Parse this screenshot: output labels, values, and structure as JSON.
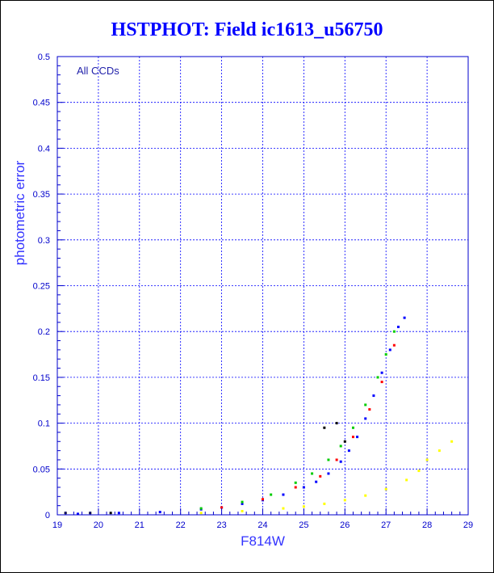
{
  "chart_data": {
    "type": "scatter",
    "title": "HSTPHOT: Field ic1613_u56750",
    "xlabel": "F814W",
    "ylabel": "photometric error",
    "annotation": "All CCDs",
    "xlim": [
      19,
      29
    ],
    "ylim": [
      0,
      0.5
    ],
    "xticks": [
      "19",
      "20",
      "21",
      "22",
      "23",
      "24",
      "25",
      "26",
      "27",
      "28",
      "29"
    ],
    "yticks": [
      "0",
      "0.05",
      "0.1",
      "0.15",
      "0.2",
      "0.25",
      "0.3",
      "0.35",
      "0.4",
      "0.45",
      "0.5"
    ],
    "grid": true,
    "colors": {
      "title": "#0000ff",
      "axis": "#0000cc",
      "grid": "#0000ff",
      "series_blue": "#0000ff",
      "series_green": "#00cc00",
      "series_red": "#ff0000",
      "series_yellow": "#ffff00",
      "series_black": "#000000"
    },
    "series": [
      {
        "color": "series_blue",
        "x": [
          19.5,
          20.5,
          21.5,
          22.5,
          23.0,
          23.5,
          24.0,
          24.5,
          25.0,
          25.3,
          25.6,
          25.9,
          26.1,
          26.3,
          26.5,
          26.7,
          26.9,
          27.1,
          27.3,
          27.45
        ],
        "y": [
          0.001,
          0.002,
          0.003,
          0.006,
          0.008,
          0.012,
          0.016,
          0.022,
          0.03,
          0.036,
          0.045,
          0.058,
          0.07,
          0.085,
          0.105,
          0.13,
          0.155,
          0.18,
          0.205,
          0.215
        ]
      },
      {
        "color": "series_green",
        "x": [
          22.5,
          23.5,
          24.2,
          24.8,
          25.2,
          25.6,
          25.9,
          26.2,
          26.5,
          26.8,
          27.0,
          27.2
        ],
        "y": [
          0.007,
          0.014,
          0.022,
          0.035,
          0.045,
          0.06,
          0.075,
          0.095,
          0.12,
          0.15,
          0.175,
          0.2
        ]
      },
      {
        "color": "series_red",
        "x": [
          23.0,
          24.0,
          24.8,
          25.4,
          25.8,
          26.2,
          26.6,
          26.9,
          27.2
        ],
        "y": [
          0.008,
          0.017,
          0.03,
          0.042,
          0.06,
          0.085,
          0.115,
          0.145,
          0.185
        ]
      },
      {
        "color": "series_yellow",
        "x": [
          22.5,
          23.5,
          24.5,
          25.0,
          25.5,
          26.0,
          26.5,
          27.0,
          27.5,
          27.8,
          28.0,
          28.3,
          28.6
        ],
        "y": [
          0.002,
          0.004,
          0.007,
          0.009,
          0.012,
          0.016,
          0.021,
          0.028,
          0.038,
          0.048,
          0.06,
          0.07,
          0.08
        ]
      },
      {
        "color": "series_black",
        "x": [
          19.2,
          19.8,
          20.3,
          25.5,
          25.8,
          26.0
        ],
        "y": [
          0.002,
          0.002,
          0.002,
          0.095,
          0.1,
          0.08
        ]
      }
    ]
  }
}
